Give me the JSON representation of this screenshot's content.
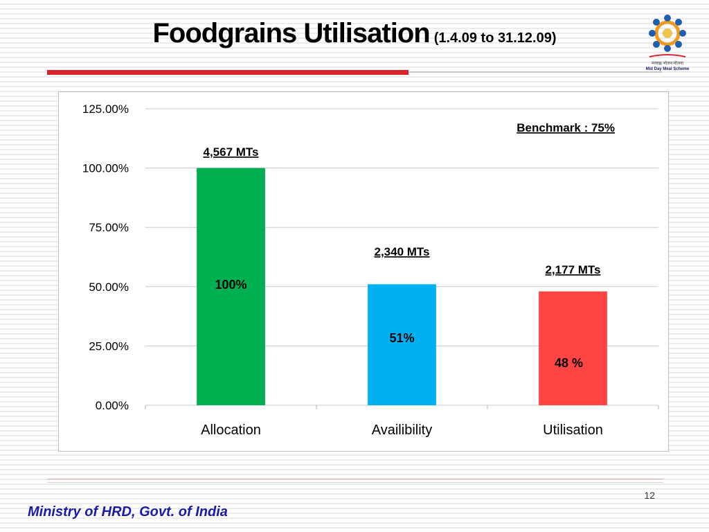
{
  "slide": {
    "title_main": "Foodgrains Utilisation",
    "title_sub": "(1.4.09 to 31.12.09)",
    "page_number": "12",
    "footer": "Ministry of HRD, Govt. of India",
    "logo_text_hindi": "मध्याह्न भोजन योजना",
    "logo_text_english": "Mid Day Meal Scheme",
    "colors": {
      "accent_red": "#d8232a",
      "footer_blue": "#1a1aa6"
    }
  },
  "chart_data": {
    "type": "bar",
    "categories": [
      "Allocation",
      "Availibility",
      "Utilisation"
    ],
    "values": [
      100,
      51,
      48
    ],
    "value_labels": [
      "100%",
      "51%",
      "48 %"
    ],
    "top_labels": [
      "4,567 MTs",
      "2,340 MTs",
      "2,177 MTs"
    ],
    "bar_colors": [
      "#00b050",
      "#00b0f0",
      "#ff4444"
    ],
    "yticks": [
      "0.00%",
      "25.00%",
      "50.00%",
      "75.00%",
      "100.00%",
      "125.00%"
    ],
    "ylim": [
      0,
      125
    ],
    "grid": true,
    "annotation": "Benchmark : 75%"
  }
}
